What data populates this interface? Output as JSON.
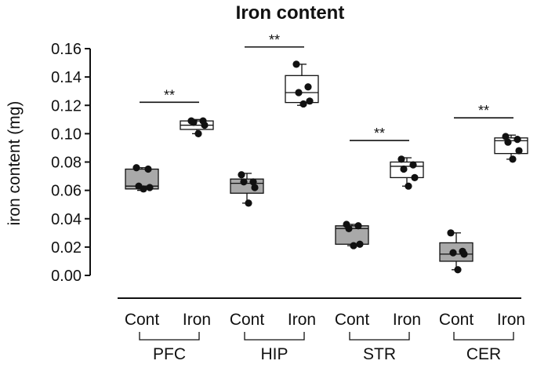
{
  "chart_data": {
    "type": "box",
    "title": "Iron content",
    "ylabel": "iron content (mg)",
    "ylim": [
      0.0,
      0.16
    ],
    "yticks": [
      "0.00",
      "0.02",
      "0.04",
      "0.06",
      "0.08",
      "0.10",
      "0.12",
      "0.14",
      "0.16"
    ],
    "categories": [
      "Cont",
      "Iron"
    ],
    "groups": [
      {
        "name": "PFC",
        "significance": "**",
        "boxes": [
          {
            "category": "Cont",
            "color": "#a9a9a9",
            "min": 0.06,
            "q1": 0.061,
            "median": 0.063,
            "q3": 0.075,
            "max": 0.076,
            "points": [
              0.076,
              0.075,
              0.063,
              0.062,
              0.061
            ]
          },
          {
            "category": "Iron",
            "color": "#ffffff",
            "min": 0.1,
            "q1": 0.103,
            "median": 0.106,
            "q3": 0.109,
            "max": 0.11,
            "points": [
              0.109,
              0.109,
              0.108,
              0.106,
              0.1
            ]
          }
        ]
      },
      {
        "name": "HIP",
        "significance": "**",
        "boxes": [
          {
            "category": "Cont",
            "color": "#a9a9a9",
            "min": 0.051,
            "q1": 0.058,
            "median": 0.065,
            "q3": 0.068,
            "max": 0.072,
            "points": [
              0.071,
              0.066,
              0.066,
              0.062,
              0.051
            ]
          },
          {
            "category": "Iron",
            "color": "#ffffff",
            "min": 0.12,
            "q1": 0.122,
            "median": 0.129,
            "q3": 0.141,
            "max": 0.149,
            "points": [
              0.149,
              0.133,
              0.129,
              0.123,
              0.121
            ]
          }
        ]
      },
      {
        "name": "STR",
        "significance": "**",
        "boxes": [
          {
            "category": "Cont",
            "color": "#a9a9a9",
            "min": 0.021,
            "q1": 0.022,
            "median": 0.033,
            "q3": 0.035,
            "max": 0.036,
            "points": [
              0.036,
              0.035,
              0.033,
              0.022,
              0.021
            ]
          },
          {
            "category": "Iron",
            "color": "#ffffff",
            "min": 0.063,
            "q1": 0.069,
            "median": 0.077,
            "q3": 0.08,
            "max": 0.083,
            "points": [
              0.082,
              0.078,
              0.075,
              0.069,
              0.063
            ]
          }
        ]
      },
      {
        "name": "CER",
        "significance": "**",
        "boxes": [
          {
            "category": "Cont",
            "color": "#a9a9a9",
            "min": 0.004,
            "q1": 0.01,
            "median": 0.015,
            "q3": 0.023,
            "max": 0.03,
            "points": [
              0.03,
              0.017,
              0.016,
              0.015,
              0.004
            ]
          },
          {
            "category": "Iron",
            "color": "#ffffff",
            "min": 0.082,
            "q1": 0.086,
            "median": 0.095,
            "q3": 0.097,
            "max": 0.099,
            "points": [
              0.098,
              0.096,
              0.094,
              0.088,
              0.082
            ]
          }
        ]
      }
    ]
  }
}
